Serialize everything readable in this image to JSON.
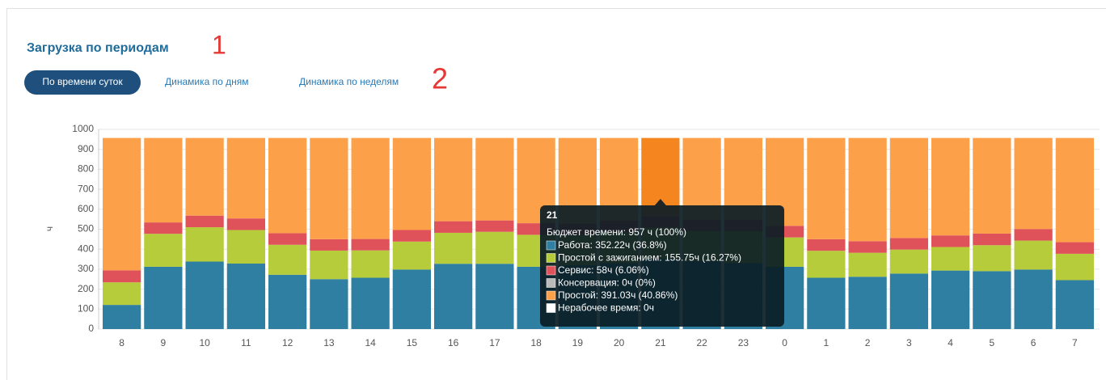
{
  "header": {
    "title": "Загрузка по периодам",
    "annotations": [
      "1",
      "2"
    ]
  },
  "tabs": [
    "По времени суток",
    "Динамика по дням",
    "Динамика по неделям"
  ],
  "chart_data": {
    "type": "stacked_bar",
    "y_label": "ч",
    "categories": [
      "8",
      "9",
      "10",
      "11",
      "12",
      "13",
      "14",
      "15",
      "16",
      "17",
      "18",
      "19",
      "20",
      "21",
      "22",
      "23",
      "0",
      "1",
      "2",
      "3",
      "4",
      "5",
      "6",
      "7"
    ],
    "ylim": [
      0,
      1000
    ],
    "yticks": [
      0,
      100,
      200,
      300,
      400,
      500,
      600,
      700,
      800,
      900,
      1000
    ],
    "grid": true,
    "series": [
      {
        "color": "#2e7fa1",
        "values": [
          121,
          312,
          338,
          328,
          272,
          250,
          257,
          298,
          327,
          327,
          312,
          320,
          330,
          352.22,
          340,
          330,
          312,
          257,
          262,
          278,
          293,
          290,
          298,
          245
        ]
      },
      {
        "color": "#b6cc3a",
        "values": [
          113,
          165,
          172,
          168,
          150,
          143,
          137,
          140,
          155,
          160,
          160,
          150,
          155,
          155.75,
          150,
          160,
          147,
          135,
          120,
          120,
          118,
          130,
          145,
          132
        ]
      },
      {
        "color": "#e0525a",
        "values": [
          60,
          57,
          58,
          58,
          58,
          57,
          57,
          58,
          58,
          57,
          58,
          58,
          58,
          58,
          58,
          58,
          58,
          58,
          58,
          58,
          58,
          58,
          58,
          58
        ]
      },
      {
        "color": "#bbbbbb",
        "values": [
          0,
          0,
          0,
          0,
          0,
          0,
          0,
          0,
          0,
          0,
          0,
          0,
          0,
          0,
          0,
          0,
          0,
          0,
          0,
          0,
          0,
          0,
          0,
          0
        ]
      },
      {
        "color": "#fda04a",
        "values": [
          663,
          423,
          389,
          403,
          477,
          507,
          506,
          461,
          417,
          413,
          427,
          429,
          414,
          391.03,
          409,
          409,
          440,
          507,
          517,
          501,
          488,
          479,
          456,
          522
        ]
      },
      {
        "color": "#ffffff",
        "values": [
          0,
          0,
          0,
          0,
          0,
          0,
          0,
          0,
          0,
          0,
          0,
          0,
          0,
          0,
          0,
          0,
          0,
          0,
          0,
          0,
          0,
          0,
          0,
          0
        ]
      }
    ],
    "hover_color": "#f5861f",
    "tooltip": {
      "title": "21",
      "total": "Бюджет времени: 957 ч (100%)",
      "items": [
        "Работа: 352.22ч (36.8%)",
        "Простой с зажиганием: 155.75ч (16.27%)",
        "Сервис: 58ч (6.06%)",
        "Консервация: 0ч (0%)",
        "Простой: 391.03ч (40.86%)",
        "Нерабочее время: 0ч"
      ]
    }
  }
}
